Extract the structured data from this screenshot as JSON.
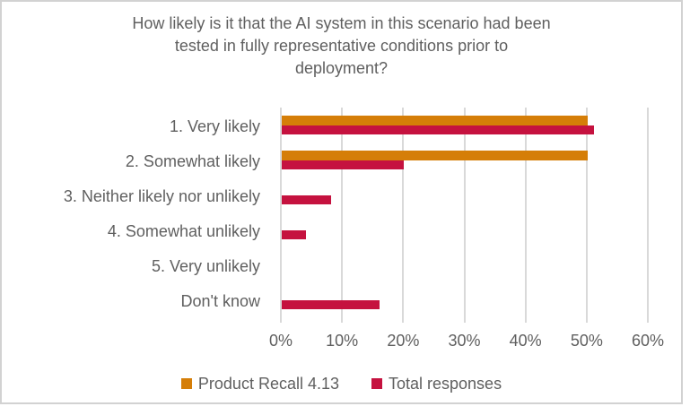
{
  "chart_data": {
    "type": "bar",
    "orientation": "horizontal",
    "title": "How likely is it that the AI system in this scenario had been tested in fully representative conditions prior to deployment?",
    "title_lines": [
      "How likely is it that the AI system in this scenario had been",
      "tested in fully representative conditions prior to",
      "deployment?"
    ],
    "categories": [
      "1. Very likely",
      "2. Somewhat likely",
      "3. Neither likely nor unlikely",
      "4. Somewhat unlikely",
      "5. Very unlikely",
      "Don't know"
    ],
    "series": [
      {
        "name": "Product Recall 4.13",
        "color": "#d57e08",
        "values": [
          50,
          50,
          0,
          0,
          0,
          0
        ]
      },
      {
        "name": "Total responses",
        "color": "#c5123f",
        "values": [
          51,
          20,
          8,
          4,
          0,
          16
        ]
      }
    ],
    "x_ticks": [
      "0%",
      "10%",
      "20%",
      "30%",
      "40%",
      "50%",
      "60%"
    ],
    "x_tick_values": [
      0,
      10,
      20,
      30,
      40,
      50,
      60
    ],
    "xlim": [
      0,
      60
    ],
    "grid": "vertical",
    "legend_position": "bottom",
    "colors": {
      "text": "#5f5f5f",
      "gridline": "#d9d9d9",
      "frame_border": "#d2d2d2",
      "background": "#ffffff"
    }
  }
}
